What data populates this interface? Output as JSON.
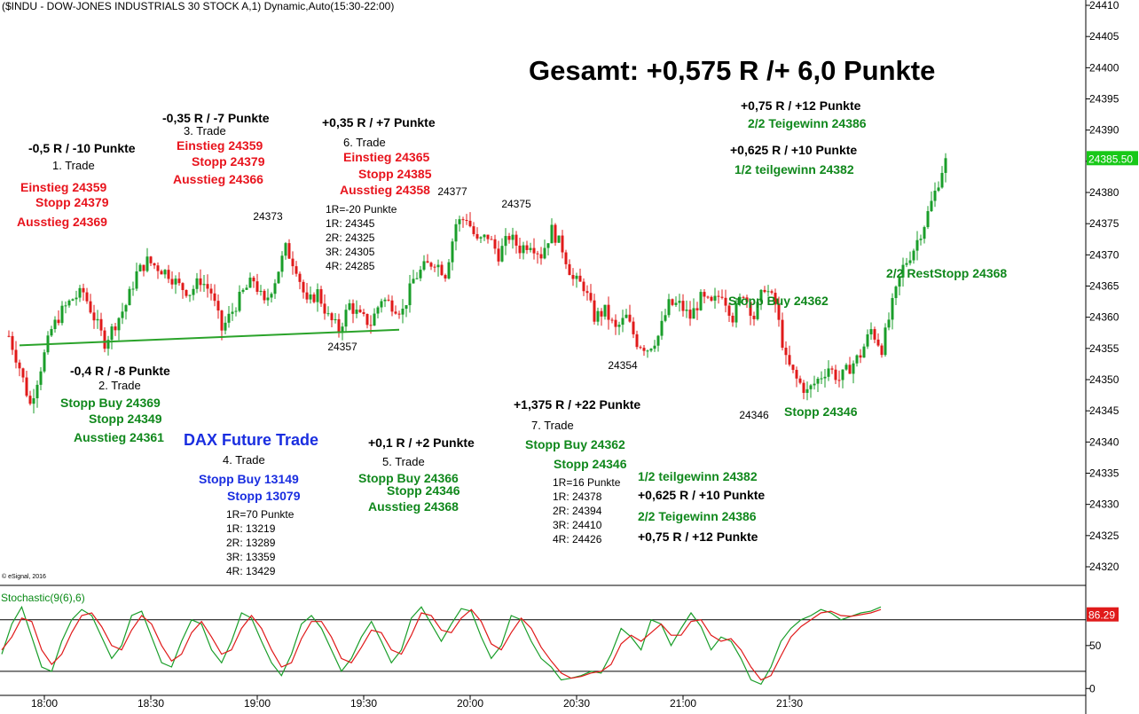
{
  "header": "($INDU - DOW-JONES INDUSTRIALS 30 STOCK A,1) Dynamic,Auto(15:30-22:00)",
  "copyright": "© eSignal, 2016",
  "headline": "Gesamt: +0,575 R /+ 6,0 Punkte",
  "stochastic_label": "Stochastic(9(6),6)",
  "colors": {
    "up": "#1a9e2a",
    "down": "#e01a1a",
    "k_line": "#1a9e2a",
    "d_line": "#e01a1a",
    "trendline": "#2aa32a",
    "last_price_bg": "#18c818",
    "stoch_value_bg": "#e01a1a"
  },
  "annotations": {
    "t1_result": "-0,5 R / -10 Punkte",
    "t1_title": "1. Trade",
    "t1_entry": "Einstieg 24359",
    "t1_stop": "Stopp 24379",
    "t1_exit": "Ausstieg 24369",
    "t2_result": "-0,4 R / -8 Punkte",
    "t2_title": "2. Trade",
    "t2_entry": "Stopp Buy 24369",
    "t2_stop": "Stopp 24349",
    "t2_exit": "Ausstieg 24361",
    "t3_result": "-0,35 R / -7 Punkte",
    "t3_title": "3. Trade",
    "t3_entry": "Einstieg 24359",
    "t3_stop": "Stopp 24379",
    "t3_exit": "Ausstieg 24366",
    "t4_header": "DAX Future Trade",
    "t4_title": "4. Trade",
    "t4_entry": "Stopp Buy 13149",
    "t4_stop": "Stopp 13079",
    "t4_r": [
      "1R=70 Punkte",
      "1R: 13219",
      "2R: 13289",
      "3R: 13359",
      "4R: 13429"
    ],
    "t5_result": "+0,1 R / +2 Punkte",
    "t5_title": "5. Trade",
    "t5_entry": "Stopp Buy 24366",
    "t5_stop": "Stopp 24346",
    "t5_exit": "Ausstieg 24368",
    "t6_result": "+0,35 R / +7 Punkte",
    "t6_title": "6. Trade",
    "t6_entry": "Einstieg 24365",
    "t6_stop": "Stopp 24385",
    "t6_exit": "Ausstieg 24358",
    "t6_r": [
      "1R=-20 Punkte",
      "1R: 24345",
      "2R: 24325",
      "3R: 24305",
      "4R: 24285"
    ],
    "t7_result": "+1,375 R / +22 Punkte",
    "t7_title": "7. Trade",
    "t7_entry": "Stopp Buy 24362",
    "t7_stop": "Stopp 24346",
    "t7_r": [
      "1R=16 Punkte",
      "1R: 24378",
      "2R: 24394",
      "3R: 24410",
      "4R: 24426"
    ],
    "t7_partial1": "1/2 teilgewinn 24382",
    "t7_partial1_result": "+0,625 R / +10 Punkte",
    "t7_partial2": "2/2 Teigewinn 24386",
    "t7_partial2_result": "+0,75 R / +12 Punkte",
    "top_partial2_result": "+0,75 R / +12 Punkte",
    "top_partial2": "2/2 Teigewinn 24386",
    "top_partial1_result": "+0,625 R / +10 Punkte",
    "top_partial1": "1/2 teilgewinn 24382",
    "rest_stop": "2/2 RestStopp 24368",
    "stop_buy_chart": "Stopp Buy 24362",
    "stop_chart": "Stopp 24346"
  },
  "chart_data": [
    {
      "type": "candlestick",
      "title": "($INDU - DOW-JONES INDUSTRIALS 30 STOCK A,1) Dynamic,Auto(15:30-22:00)",
      "time_range": [
        "17:50",
        "21:58"
      ],
      "x_ticks": [
        "18:00",
        "18:30",
        "19:00",
        "19:30",
        "20:00",
        "20:30",
        "21:00",
        "21:30"
      ],
      "y_ticks": [
        24320,
        24325,
        24330,
        24335,
        24340,
        24345,
        24350,
        24355,
        24360,
        24365,
        24370,
        24375,
        24380,
        24385,
        24390,
        24395,
        24400,
        24405,
        24410
      ],
      "ylim": [
        24318,
        24410
      ],
      "last_price": "24385.50",
      "price_path": [
        [
          "17:50",
          24357
        ],
        [
          "17:53",
          24352
        ],
        [
          "17:56",
          24346
        ],
        [
          "17:59",
          24352
        ],
        [
          "18:02",
          24358
        ],
        [
          "18:05",
          24361
        ],
        [
          "18:08",
          24363
        ],
        [
          "18:11",
          24364
        ],
        [
          "18:14",
          24360
        ],
        [
          "18:17",
          24356
        ],
        [
          "18:20",
          24359
        ],
        [
          "18:23",
          24362
        ],
        [
          "18:26",
          24367
        ],
        [
          "18:29",
          24369
        ],
        [
          "18:32",
          24368
        ],
        [
          "18:35",
          24367
        ],
        [
          "18:38",
          24365
        ],
        [
          "18:41",
          24364
        ],
        [
          "18:44",
          24366
        ],
        [
          "18:47",
          24364
        ],
        [
          "18:50",
          24358
        ],
        [
          "18:53",
          24361
        ],
        [
          "18:56",
          24364
        ],
        [
          "18:59",
          24366
        ],
        [
          "19:02",
          24362
        ],
        [
          "19:05",
          24366
        ],
        [
          "19:08",
          24371
        ],
        [
          "19:11",
          24368
        ],
        [
          "19:14",
          24362
        ],
        [
          "19:17",
          24364
        ],
        [
          "19:20",
          24360
        ],
        [
          "19:23",
          24358
        ],
        [
          "19:26",
          24362
        ],
        [
          "19:29",
          24360
        ],
        [
          "19:32",
          24359
        ],
        [
          "19:35",
          24363
        ],
        [
          "19:38",
          24362
        ],
        [
          "19:41",
          24361
        ],
        [
          "19:44",
          24366
        ],
        [
          "19:47",
          24368
        ],
        [
          "19:50",
          24369
        ],
        [
          "19:53",
          24367
        ],
        [
          "19:56",
          24375
        ],
        [
          "19:59",
          24376
        ],
        [
          "20:02",
          24372
        ],
        [
          "20:05",
          24373
        ],
        [
          "20:08",
          24370
        ],
        [
          "20:11",
          24373
        ],
        [
          "20:14",
          24371
        ],
        [
          "20:17",
          24372
        ],
        [
          "20:20",
          24370
        ],
        [
          "20:23",
          24374
        ],
        [
          "20:26",
          24371
        ],
        [
          "20:29",
          24366
        ],
        [
          "20:32",
          24365
        ],
        [
          "20:35",
          24360
        ],
        [
          "20:38",
          24361
        ],
        [
          "20:41",
          24358
        ],
        [
          "20:44",
          24360
        ],
        [
          "20:47",
          24356
        ],
        [
          "20:50",
          24355
        ],
        [
          "20:53",
          24357
        ],
        [
          "20:56",
          24362
        ],
        [
          "20:59",
          24362
        ],
        [
          "21:02",
          24360
        ],
        [
          "21:05",
          24363
        ],
        [
          "21:08",
          24362
        ],
        [
          "21:11",
          24364
        ],
        [
          "21:14",
          24360
        ],
        [
          "21:17",
          24364
        ],
        [
          "21:20",
          24360
        ],
        [
          "21:23",
          24365
        ],
        [
          "21:26",
          24362
        ],
        [
          "21:29",
          24353
        ],
        [
          "21:32",
          24350
        ],
        [
          "21:35",
          24348
        ],
        [
          "21:38",
          24350
        ],
        [
          "21:41",
          24352
        ],
        [
          "21:44",
          24350
        ],
        [
          "21:47",
          24352
        ],
        [
          "21:50",
          24354
        ],
        [
          "21:53",
          24358
        ],
        [
          "21:56",
          24355
        ],
        [
          "21:59",
          24362
        ],
        [
          "22:02",
          24368
        ],
        [
          "22:05",
          24371
        ],
        [
          "22:08",
          24375
        ],
        [
          "22:11",
          24380
        ],
        [
          "22:14",
          24385.5
        ]
      ],
      "price_labels": [
        {
          "text": "24373",
          "time": "19:03",
          "value": 24373
        },
        {
          "text": "24377",
          "time": "19:55",
          "value": 24377
        },
        {
          "text": "24375",
          "time": "20:13",
          "value": 24375
        },
        {
          "text": "24357",
          "time": "19:24",
          "value": 24357
        },
        {
          "text": "24354",
          "time": "20:43",
          "value": 24354
        },
        {
          "text": "24346",
          "time": "21:20",
          "value": 24346
        }
      ],
      "trendline": [
        [
          "17:53",
          24355.5
        ],
        [
          "19:40",
          24358
        ]
      ]
    },
    {
      "type": "line",
      "title": "Stochastic(9(6),6)",
      "y_ticks": [
        0,
        50
      ],
      "ylim": [
        -8,
        118
      ],
      "reference_lines": [
        20,
        80
      ],
      "last_value": "86.29",
      "series": [
        {
          "name": "%K",
          "color": "#1a9e2a",
          "values": [
            40,
            75,
            95,
            60,
            25,
            20,
            55,
            80,
            92,
            85,
            60,
            35,
            50,
            85,
            90,
            60,
            30,
            25,
            55,
            80,
            75,
            45,
            30,
            55,
            88,
            82,
            55,
            30,
            15,
            40,
            75,
            85,
            70,
            45,
            20,
            35,
            60,
            78,
            55,
            30,
            45,
            82,
            95,
            75,
            55,
            75,
            93,
            90,
            60,
            35,
            50,
            85,
            80,
            55,
            35,
            25,
            10,
            12,
            15,
            20,
            18,
            40,
            70,
            60,
            45,
            80,
            75,
            50,
            70,
            88,
            72,
            45,
            60,
            55,
            35,
            10,
            5,
            25,
            55,
            70,
            80,
            85,
            92,
            88,
            80,
            84,
            88,
            90,
            95
          ]
        },
        {
          "name": "%D",
          "color": "#e01a1a",
          "values": [
            45,
            60,
            82,
            78,
            45,
            28,
            40,
            65,
            85,
            88,
            72,
            50,
            45,
            68,
            85,
            75,
            50,
            32,
            40,
            65,
            78,
            60,
            40,
            45,
            70,
            85,
            70,
            45,
            25,
            30,
            58,
            78,
            78,
            60,
            35,
            30,
            48,
            68,
            65,
            45,
            40,
            62,
            88,
            85,
            68,
            65,
            82,
            92,
            78,
            52,
            45,
            65,
            82,
            70,
            48,
            32,
            18,
            12,
            14,
            18,
            20,
            28,
            52,
            62,
            55,
            65,
            75,
            62,
            62,
            78,
            80,
            62,
            55,
            58,
            45,
            25,
            10,
            15,
            38,
            60,
            72,
            80,
            88,
            90,
            85,
            84,
            86,
            88,
            92
          ]
        }
      ]
    }
  ]
}
